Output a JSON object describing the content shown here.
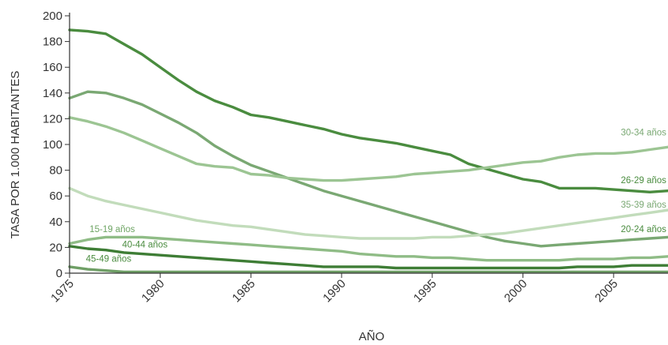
{
  "chart_data": {
    "type": "line",
    "xlabel": "AÑO",
    "ylabel": "TASA POR 1.000 HABITANTES",
    "xlim": [
      1975,
      2008
    ],
    "ylim": [
      0,
      200
    ],
    "x_ticks": [
      1975,
      1980,
      1985,
      1990,
      1995,
      2000,
      2005
    ],
    "y_ticks": [
      0,
      20,
      40,
      60,
      80,
      100,
      120,
      140,
      160,
      180,
      200
    ],
    "grid": false,
    "legend": "inline",
    "series": [
      {
        "name": "26-29 años",
        "color": "#4a8c3f",
        "x": [
          1975,
          1976,
          1977,
          1978,
          1979,
          1980,
          1981,
          1982,
          1983,
          1984,
          1985,
          1986,
          1987,
          1988,
          1989,
          1990,
          1991,
          1992,
          1993,
          1994,
          1995,
          1996,
          1997,
          1998,
          1999,
          2000,
          2001,
          2002,
          2003,
          2004,
          2005,
          2006,
          2007,
          2008
        ],
        "y": [
          189,
          188,
          186,
          178,
          170,
          160,
          150,
          141,
          134,
          129,
          123,
          121,
          118,
          115,
          112,
          108,
          105,
          103,
          101,
          98,
          95,
          92,
          85,
          81,
          77,
          73,
          71,
          66,
          66,
          66,
          65,
          64,
          63,
          64
        ]
      },
      {
        "name": "20-24 años",
        "color": "#7aa873",
        "x": [
          1975,
          1976,
          1977,
          1978,
          1979,
          1980,
          1981,
          1982,
          1983,
          1984,
          1985,
          1986,
          1987,
          1988,
          1989,
          1990,
          1991,
          1992,
          1993,
          1994,
          1995,
          1996,
          1997,
          1998,
          1999,
          2000,
          2001,
          2002,
          2003,
          2004,
          2005,
          2006,
          2007,
          2008
        ],
        "y": [
          136,
          141,
          140,
          136,
          131,
          124,
          117,
          109,
          99,
          91,
          84,
          79,
          74,
          69,
          64,
          60,
          56,
          52,
          48,
          44,
          40,
          36,
          32,
          28,
          25,
          23,
          21,
          22,
          23,
          24,
          25,
          26,
          27,
          28
        ]
      },
      {
        "name": "30-34 años",
        "color": "#9cc593",
        "x": [
          1975,
          1976,
          1977,
          1978,
          1979,
          1980,
          1981,
          1982,
          1983,
          1984,
          1985,
          1986,
          1987,
          1988,
          1989,
          1990,
          1991,
          1992,
          1993,
          1994,
          1995,
          1996,
          1997,
          1998,
          1999,
          2000,
          2001,
          2002,
          2003,
          2004,
          2005,
          2006,
          2007,
          2008
        ],
        "y": [
          121,
          118,
          114,
          109,
          103,
          97,
          91,
          85,
          83,
          82,
          77,
          76,
          74,
          73,
          72,
          72,
          73,
          74,
          75,
          77,
          78,
          79,
          80,
          82,
          84,
          86,
          87,
          90,
          92,
          93,
          93,
          94,
          96,
          98
        ]
      },
      {
        "name": "35-39 años",
        "color": "#c2dcbb",
        "x": [
          1975,
          1976,
          1977,
          1978,
          1979,
          1980,
          1981,
          1982,
          1983,
          1984,
          1985,
          1986,
          1987,
          1988,
          1989,
          1990,
          1991,
          1992,
          1993,
          1994,
          1995,
          1996,
          1997,
          1998,
          1999,
          2000,
          2001,
          2002,
          2003,
          2004,
          2005,
          2006,
          2007,
          2008
        ],
        "y": [
          66,
          60,
          56,
          53,
          50,
          47,
          44,
          41,
          39,
          37,
          36,
          34,
          32,
          30,
          29,
          28,
          27,
          27,
          27,
          27,
          28,
          28,
          29,
          30,
          31,
          33,
          35,
          37,
          39,
          41,
          43,
          45,
          47,
          49
        ]
      },
      {
        "name": "15-19 años",
        "color": "#8fbc86",
        "x": [
          1975,
          1976,
          1977,
          1978,
          1979,
          1980,
          1981,
          1982,
          1983,
          1984,
          1985,
          1986,
          1987,
          1988,
          1989,
          1990,
          1991,
          1992,
          1993,
          1994,
          1995,
          1996,
          1997,
          1998,
          1999,
          2000,
          2001,
          2002,
          2003,
          2004,
          2005,
          2006,
          2007,
          2008
        ],
        "y": [
          23,
          26,
          28,
          28,
          28,
          27,
          26,
          25,
          24,
          23,
          22,
          21,
          20,
          19,
          18,
          17,
          15,
          14,
          13,
          13,
          12,
          12,
          11,
          10,
          10,
          10,
          10,
          10,
          11,
          11,
          11,
          12,
          12,
          13
        ]
      },
      {
        "name": "40-44 años",
        "color": "#3e7d35",
        "x": [
          1975,
          1976,
          1977,
          1978,
          1979,
          1980,
          1981,
          1982,
          1983,
          1984,
          1985,
          1986,
          1987,
          1988,
          1989,
          1990,
          1991,
          1992,
          1993,
          1994,
          1995,
          1996,
          1997,
          1998,
          1999,
          2000,
          2001,
          2002,
          2003,
          2004,
          2005,
          2006,
          2007,
          2008
        ],
        "y": [
          21,
          19,
          18,
          16,
          15,
          14,
          13,
          12,
          11,
          10,
          9,
          8,
          7,
          6,
          5,
          5,
          5,
          5,
          4,
          4,
          4,
          4,
          4,
          4,
          4,
          4,
          4,
          4,
          5,
          5,
          5,
          6,
          6,
          6
        ]
      },
      {
        "name": "45-49 años",
        "color": "#6f9f66",
        "x": [
          1975,
          1976,
          1977,
          1978,
          1979,
          1980,
          1981,
          1982,
          1983,
          1984,
          1985,
          1986,
          1987,
          1988,
          1989,
          1990,
          1991,
          1992,
          1993,
          1994,
          1995,
          1996,
          1997,
          1998,
          1999,
          2000,
          2001,
          2002,
          2003,
          2004,
          2005,
          2006,
          2007,
          2008
        ],
        "y": [
          5,
          3,
          2,
          1,
          1,
          1,
          1,
          1,
          1,
          1,
          1,
          1,
          1,
          1,
          1,
          1,
          1,
          1,
          1,
          1,
          1,
          1,
          1,
          1,
          1,
          1,
          1,
          1,
          1,
          1,
          1,
          1,
          1,
          1
        ]
      }
    ],
    "annotations": [
      {
        "text": "30-34 años",
        "x": 2005.4,
        "y": 107,
        "color": "#7aa873"
      },
      {
        "text": "26-29 años",
        "x": 2005.4,
        "y": 70,
        "color": "#4a8c3f"
      },
      {
        "text": "35-39 años",
        "x": 2005.4,
        "y": 51,
        "color": "#7aa873"
      },
      {
        "text": "20-24 años",
        "x": 2005.4,
        "y": 32,
        "color": "#4a8c3f"
      },
      {
        "text": "15-19 años",
        "x": 1976.1,
        "y": 32,
        "color": "#6fa565"
      },
      {
        "text": "40-44 años",
        "x": 1977.9,
        "y": 20,
        "color": "#4a8c3f"
      },
      {
        "text": "45-49 años",
        "x": 1975.9,
        "y": 9,
        "color": "#4a8c3f"
      }
    ]
  }
}
